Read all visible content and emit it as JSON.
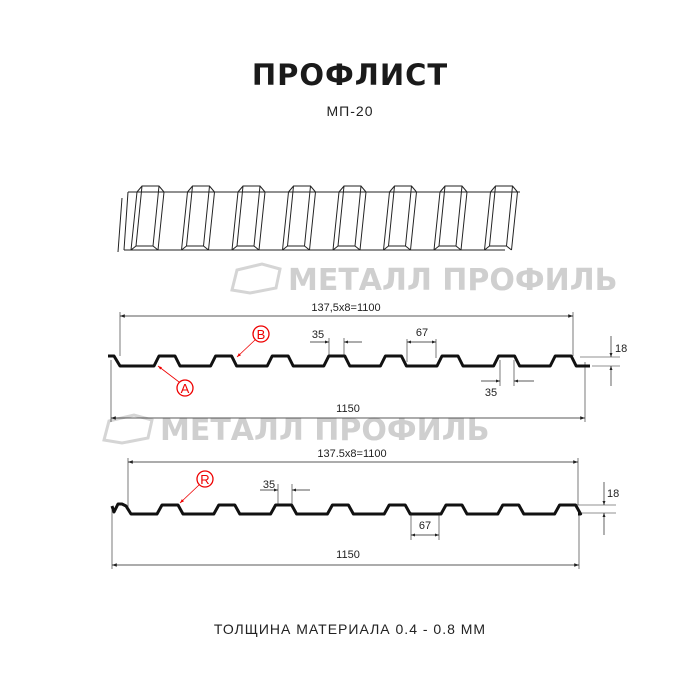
{
  "title": "ПРОФЛИСТ",
  "subtitle": "МП-20",
  "footer": "ТОЛЩИНА МАТЕРИАЛА 0.4 - 0.8 ММ",
  "watermark": "МЕТАЛЛ ПРОФИЛЬ",
  "profile_1": {
    "pitch_label": "137,5x8=1100",
    "total_width": "1150",
    "crest_width": "35",
    "trough_width": "67",
    "bottom_crest": "35",
    "height": "18",
    "marker_a": "A",
    "marker_b": "B"
  },
  "profile_2": {
    "pitch_label": "137.5x8=1100",
    "total_width": "1150",
    "crest_width": "35",
    "trough_width": "67",
    "height": "18",
    "marker_r": "R"
  },
  "colors": {
    "profile": "#111111",
    "marker": "#e00000",
    "watermark": "#cfcfcf"
  }
}
